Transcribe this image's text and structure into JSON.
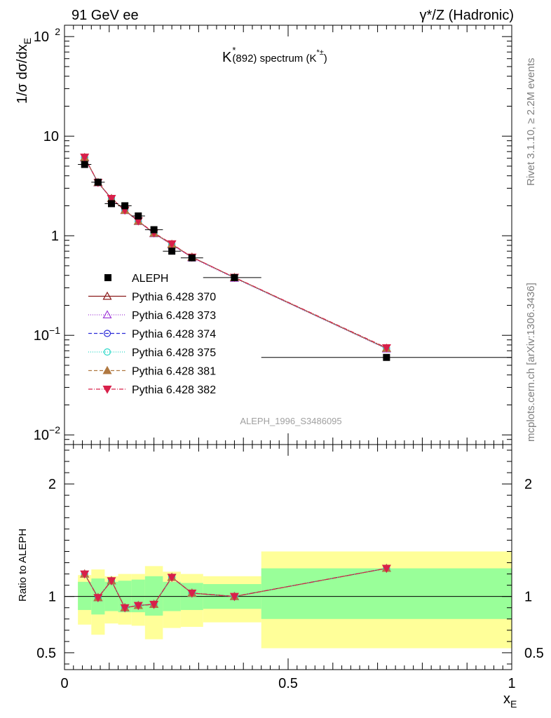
{
  "header": {
    "left": "91 GeV ee",
    "right": "γ*/Z (Hadronic)"
  },
  "side_text": {
    "top": "Rivet 3.1.10, ≥ 2.2M events",
    "bottom": "mcplots.cern.ch [arXiv:1306.3436]"
  },
  "colors": {
    "band_inner": "#99ff99",
    "band_outer": "#ffff99",
    "data": "#000000"
  },
  "chart_data": [
    {
      "type": "scatter",
      "panel": "main",
      "title_parts": {
        "k": "K",
        "k_sup": "*",
        "middle": "(892) spectrum (K",
        "sup2": "*±",
        "end": ")"
      },
      "ylabel_parts": {
        "base": "1/σ dσ/dx",
        "sub": "E"
      },
      "yscale": "log",
      "ylim": [
        0.008,
        130
      ],
      "xlim": [
        0,
        1
      ],
      "yticks": [
        {
          "v": 0.01,
          "base": "10",
          "exp": "−2"
        },
        {
          "v": 0.1,
          "base": "10",
          "exp": "−1"
        },
        {
          "v": 1,
          "label": "1"
        },
        {
          "v": 10,
          "label": "10"
        },
        {
          "v": 100,
          "base": "10",
          "exp": "2"
        }
      ],
      "watermark": "ALEPH_1996_S3486095",
      "legend_position": "middle-left",
      "data_series": {
        "name": "ALEPH",
        "x": [
          0.045,
          0.075,
          0.105,
          0.135,
          0.165,
          0.2,
          0.24,
          0.285,
          0.38,
          0.72
        ],
        "y": [
          5.2,
          3.45,
          2.1,
          2.0,
          1.58,
          1.15,
          0.7,
          0.6,
          0.38,
          0.06
        ],
        "xlo": [
          0.03,
          0.06,
          0.09,
          0.12,
          0.15,
          0.18,
          0.22,
          0.26,
          0.31,
          0.44
        ],
        "xhi": [
          0.06,
          0.09,
          0.12,
          0.15,
          0.18,
          0.22,
          0.26,
          0.31,
          0.44,
          1.0
        ]
      },
      "mc_x": [
        0.045,
        0.075,
        0.105,
        0.135,
        0.165,
        0.2,
        0.24,
        0.285,
        0.38,
        0.72
      ],
      "series": [
        {
          "name": "Pythia 6.428 370",
          "color": "#8b1a1a",
          "dash": "",
          "marker": "triangle-up-open",
          "values": [
            6.1,
            3.42,
            2.36,
            1.8,
            1.4,
            1.06,
            0.82,
            0.61,
            0.38,
            0.074
          ]
        },
        {
          "name": "Pythia 6.428 373",
          "color": "#a03cd8",
          "dash": "1,2",
          "marker": "triangle-up-open",
          "values": [
            6.05,
            3.4,
            2.35,
            1.79,
            1.39,
            1.05,
            0.81,
            0.6,
            0.375,
            0.073
          ]
        },
        {
          "name": "Pythia 6.428 374",
          "color": "#2a2ad8",
          "dash": "5,3",
          "marker": "circle-open",
          "values": [
            6.1,
            3.42,
            2.36,
            1.8,
            1.4,
            1.06,
            0.82,
            0.61,
            0.38,
            0.074
          ]
        },
        {
          "name": "Pythia 6.428 375",
          "color": "#2ad8c8",
          "dash": "1,2",
          "marker": "circle-open",
          "values": [
            6.08,
            3.41,
            2.35,
            1.8,
            1.4,
            1.06,
            0.82,
            0.61,
            0.378,
            0.074
          ]
        },
        {
          "name": "Pythia 6.428 381",
          "color": "#b07840",
          "dash": "5,3",
          "marker": "triangle-up-filled",
          "values": [
            6.1,
            3.42,
            2.36,
            1.8,
            1.4,
            1.06,
            0.82,
            0.61,
            0.38,
            0.074
          ]
        },
        {
          "name": "Pythia 6.428 382",
          "color": "#d8204a",
          "dash": "6,2,1,2",
          "marker": "triangle-down-filled",
          "values": [
            6.15,
            3.43,
            2.37,
            1.81,
            1.41,
            1.07,
            0.83,
            0.61,
            0.382,
            0.075
          ]
        }
      ]
    },
    {
      "type": "scatter",
      "panel": "ratio",
      "ylabel": "Ratio to ALEPH",
      "xlabel_parts": {
        "base": "x",
        "sub": "E"
      },
      "ylim": [
        0.35,
        2.35
      ],
      "xlim": [
        0,
        1
      ],
      "xticks": [
        {
          "v": 0,
          "label": "0"
        },
        {
          "v": 0.5,
          "label": "0.5"
        },
        {
          "v": 1,
          "label": "1"
        }
      ],
      "yticks": [
        {
          "v": 0.5,
          "label": "0.5"
        },
        {
          "v": 1,
          "label": "1"
        },
        {
          "v": 2,
          "label": "2"
        }
      ],
      "bands": [
        {
          "xlo": 0.03,
          "xhi": 0.06,
          "inner": [
            0.88,
            1.13
          ],
          "outer": [
            0.75,
            1.19
          ]
        },
        {
          "xlo": 0.06,
          "xhi": 0.09,
          "inner": [
            0.84,
            1.16
          ],
          "outer": [
            0.66,
            1.24
          ]
        },
        {
          "xlo": 0.09,
          "xhi": 0.12,
          "inner": [
            0.87,
            1.13
          ],
          "outer": [
            0.76,
            1.18
          ]
        },
        {
          "xlo": 0.12,
          "xhi": 0.15,
          "inner": [
            0.86,
            1.14
          ],
          "outer": [
            0.75,
            1.2
          ]
        },
        {
          "xlo": 0.15,
          "xhi": 0.18,
          "inner": [
            0.86,
            1.15
          ],
          "outer": [
            0.74,
            1.2
          ]
        },
        {
          "xlo": 0.18,
          "xhi": 0.22,
          "inner": [
            0.83,
            1.18
          ],
          "outer": [
            0.62,
            1.27
          ]
        },
        {
          "xlo": 0.22,
          "xhi": 0.26,
          "inner": [
            0.87,
            1.13
          ],
          "outer": [
            0.72,
            1.22
          ]
        },
        {
          "xlo": 0.26,
          "xhi": 0.31,
          "inner": [
            0.88,
            1.12
          ],
          "outer": [
            0.73,
            1.2
          ]
        },
        {
          "xlo": 0.31,
          "xhi": 0.44,
          "inner": [
            0.89,
            1.11
          ],
          "outer": [
            0.77,
            1.18
          ]
        },
        {
          "xlo": 0.44,
          "xhi": 1.0,
          "inner": [
            0.8,
            1.25
          ],
          "outer": [
            0.54,
            1.4
          ]
        }
      ],
      "ratio_x": [
        0.045,
        0.075,
        0.105,
        0.135,
        0.165,
        0.2,
        0.24,
        0.285,
        0.38,
        0.72
      ],
      "ratio_values": [
        1.2,
        0.99,
        1.14,
        0.9,
        0.92,
        0.93,
        1.17,
        1.03,
        1.0,
        1.25
      ]
    }
  ]
}
